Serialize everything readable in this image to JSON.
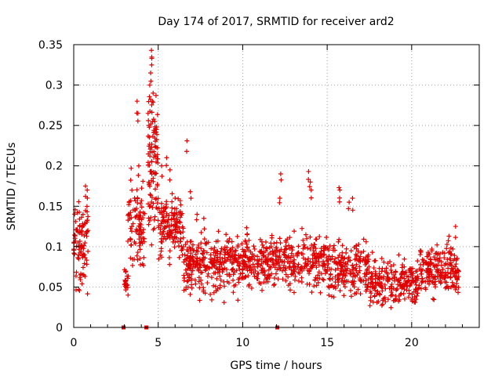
{
  "chart_data": {
    "type": "scatter",
    "title": "Day 174 of 2017, SRMTID for receiver ard2",
    "xlabel": "GPS time / hours",
    "ylabel": "SRMTID / TECUs",
    "xlim": [
      0,
      24
    ],
    "ylim": [
      0,
      0.35
    ],
    "x_ticks": [
      0,
      5,
      10,
      15,
      20
    ],
    "x_tick_labels": [
      "0",
      "5",
      "10",
      "15",
      "20"
    ],
    "y_ticks": [
      0,
      0.05,
      0.1,
      0.15,
      0.2,
      0.25,
      0.3,
      0.35
    ],
    "y_tick_labels": [
      "0",
      "0.05",
      "0.1",
      "0.15",
      "0.2",
      "0.25",
      "0.3",
      "0.35"
    ],
    "grid": true,
    "marker": "+",
    "marker_color": "#e00000",
    "baseline_markers_x": [
      2.95,
      4.3,
      12.05
    ],
    "segments": [
      {
        "x_start": 0.0,
        "x_end": 0.85,
        "y_low": 0.03,
        "y_high": 0.16,
        "count": 90
      },
      {
        "x_start": 3.0,
        "x_end": 3.25,
        "y_low": 0.035,
        "y_high": 0.08,
        "count": 20
      },
      {
        "x_start": 3.2,
        "x_end": 4.2,
        "y_low": 0.06,
        "y_high": 0.19,
        "count": 90
      },
      {
        "x_start": 4.4,
        "x_end": 5.0,
        "y_low": 0.1,
        "y_high": 0.3,
        "count": 90
      },
      {
        "x_start": 5.0,
        "x_end": 6.5,
        "y_low": 0.07,
        "y_high": 0.17,
        "count": 140
      },
      {
        "x_start": 6.5,
        "x_end": 10.0,
        "y_low": 0.03,
        "y_high": 0.12,
        "count": 300
      },
      {
        "x_start": 10.0,
        "x_end": 15.0,
        "y_low": 0.04,
        "y_high": 0.12,
        "count": 380
      },
      {
        "x_start": 15.0,
        "x_end": 17.5,
        "y_low": 0.03,
        "y_high": 0.11,
        "count": 200
      },
      {
        "x_start": 17.5,
        "x_end": 20.5,
        "y_low": 0.02,
        "y_high": 0.09,
        "count": 220
      },
      {
        "x_start": 20.5,
        "x_end": 22.8,
        "y_low": 0.03,
        "y_high": 0.11,
        "count": 200
      }
    ],
    "peaks": [
      {
        "x": 0.35,
        "y": 0.125
      },
      {
        "x": 0.55,
        "y": 0.14
      },
      {
        "x": 0.7,
        "y": 0.175
      },
      {
        "x": 0.8,
        "y": 0.17
      },
      {
        "x": 3.4,
        "y": 0.197
      },
      {
        "x": 3.6,
        "y": 0.16
      },
      {
        "x": 3.75,
        "y": 0.28
      },
      {
        "x": 3.8,
        "y": 0.265
      },
      {
        "x": 3.85,
        "y": 0.2
      },
      {
        "x": 4.4,
        "y": 0.265
      },
      {
        "x": 4.45,
        "y": 0.25
      },
      {
        "x": 4.5,
        "y": 0.3
      },
      {
        "x": 4.55,
        "y": 0.315
      },
      {
        "x": 4.6,
        "y": 0.343
      },
      {
        "x": 4.62,
        "y": 0.333
      },
      {
        "x": 4.65,
        "y": 0.28
      },
      {
        "x": 4.7,
        "y": 0.29
      },
      {
        "x": 4.8,
        "y": 0.255
      },
      {
        "x": 4.9,
        "y": 0.245
      },
      {
        "x": 5.2,
        "y": 0.2
      },
      {
        "x": 5.5,
        "y": 0.21
      },
      {
        "x": 5.7,
        "y": 0.195
      },
      {
        "x": 6.0,
        "y": 0.16
      },
      {
        "x": 6.7,
        "y": 0.231
      },
      {
        "x": 6.9,
        "y": 0.168
      },
      {
        "x": 7.3,
        "y": 0.14
      },
      {
        "x": 7.7,
        "y": 0.135
      },
      {
        "x": 12.25,
        "y": 0.19
      },
      {
        "x": 12.2,
        "y": 0.16
      },
      {
        "x": 13.9,
        "y": 0.193
      },
      {
        "x": 14.0,
        "y": 0.18
      },
      {
        "x": 14.05,
        "y": 0.17
      },
      {
        "x": 15.7,
        "y": 0.173
      },
      {
        "x": 15.75,
        "y": 0.17
      },
      {
        "x": 16.3,
        "y": 0.155
      },
      {
        "x": 16.5,
        "y": 0.16
      },
      {
        "x": 22.6,
        "y": 0.125
      }
    ]
  }
}
